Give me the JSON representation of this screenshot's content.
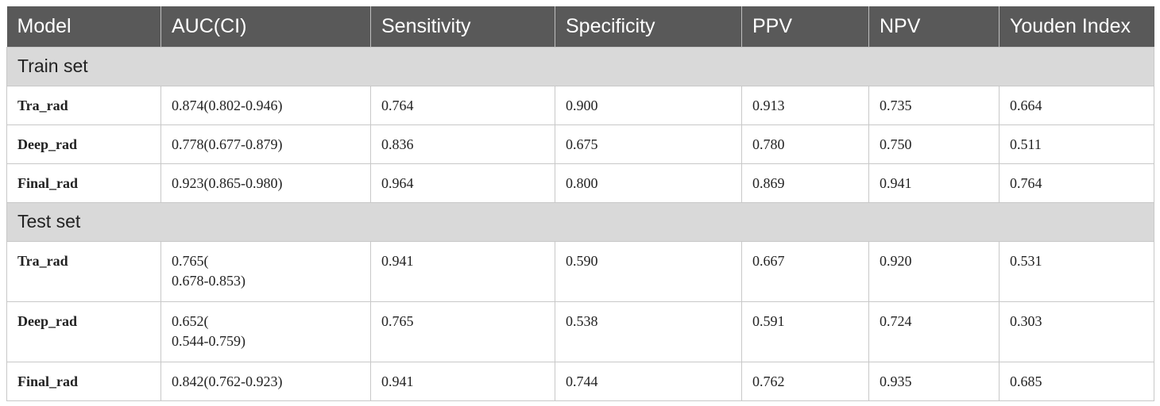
{
  "table": {
    "headers": [
      "Model",
      "AUC(CI)",
      "Sensitivity",
      "Specificity",
      "PPV",
      "NPV",
      "Youden Index"
    ],
    "sections": [
      {
        "label": "Train set",
        "rows": [
          {
            "model": "Tra_rad",
            "auc": "0.874(0.802-0.946)",
            "sensitivity": "0.764",
            "specificity": "0.900",
            "ppv": "0.913",
            "npv": "0.735",
            "youden": "0.664"
          },
          {
            "model": "Deep_rad",
            "auc": "0.778(0.677-0.879)",
            "sensitivity": "0.836",
            "specificity": "0.675",
            "ppv": "0.780",
            "npv": "0.750",
            "youden": "0.511"
          },
          {
            "model": "Final_rad",
            "auc": "0.923(0.865-0.980)",
            "sensitivity": "0.964",
            "specificity": "0.800",
            "ppv": "0.869",
            "npv": "0.941",
            "youden": "0.764"
          }
        ]
      },
      {
        "label": "Test set",
        "rows": [
          {
            "model": "Tra_rad",
            "auc": "0.765(",
            "auc2": "0.678-0.853)",
            "sensitivity": "0.941",
            "specificity": "0.590",
            "ppv": "0.667",
            "npv": "0.920",
            "youden": "0.531"
          },
          {
            "model": "Deep_rad",
            "auc": "0.652(",
            "auc2": "0.544-0.759)",
            "sensitivity": "0.765",
            "specificity": "0.538",
            "ppv": "0.591",
            "npv": "0.724",
            "youden": "0.303"
          },
          {
            "model": "Final_rad",
            "auc": "0.842(0.762-0.923)",
            "sensitivity": "0.941",
            "specificity": "0.744",
            "ppv": "0.762",
            "npv": "0.935",
            "youden": "0.685"
          }
        ]
      }
    ]
  }
}
